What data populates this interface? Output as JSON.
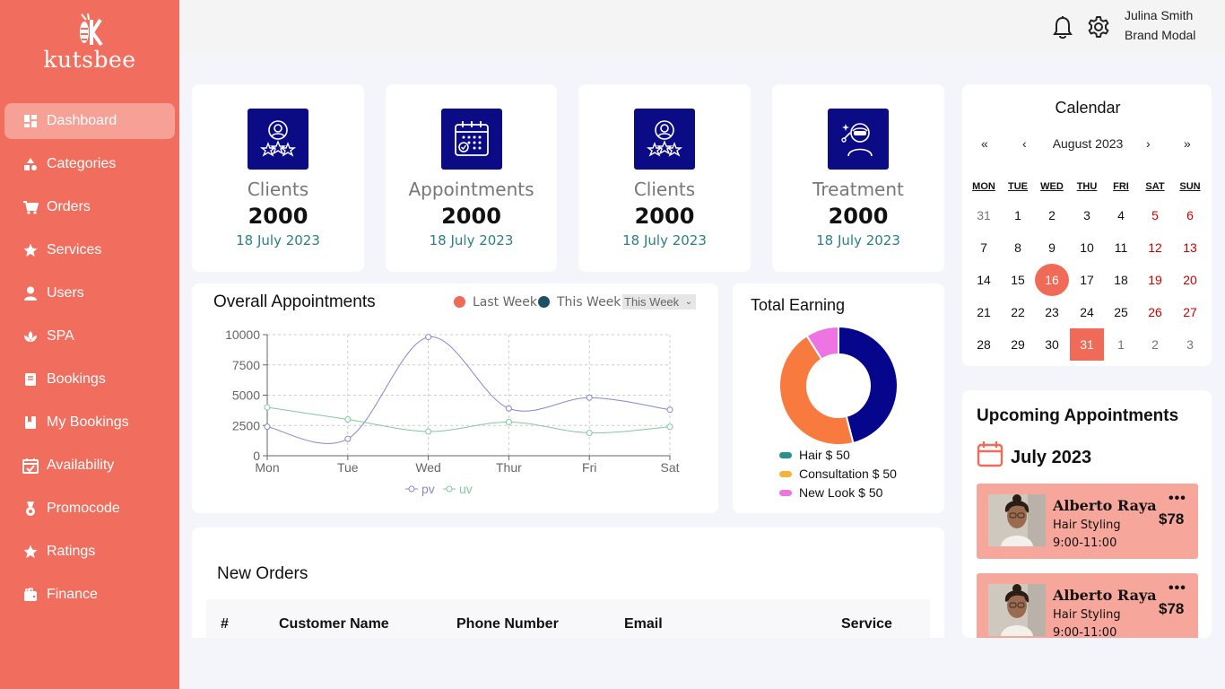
{
  "brand": {
    "name": "kutsbee"
  },
  "sidebar": {
    "items": [
      {
        "label": "Dashboard",
        "icon": "dashboard-icon",
        "active": true
      },
      {
        "label": "Categories",
        "icon": "categories-icon"
      },
      {
        "label": "Orders",
        "icon": "cart-icon"
      },
      {
        "label": "Services",
        "icon": "star-icon"
      },
      {
        "label": "Users",
        "icon": "user-icon"
      },
      {
        "label": "SPA",
        "icon": "spa-icon"
      },
      {
        "label": "Bookings",
        "icon": "book-icon"
      },
      {
        "label": "My Bookings",
        "icon": "bookmark-icon"
      },
      {
        "label": "Availability",
        "icon": "calendar-check-icon"
      },
      {
        "label": "Promocode",
        "icon": "badge-icon"
      },
      {
        "label": "Ratings",
        "icon": "star-icon"
      },
      {
        "label": "Finance",
        "icon": "wallet-icon"
      }
    ]
  },
  "header": {
    "user_name": "Julina Smith",
    "user_role": "Brand Modal"
  },
  "stats": [
    {
      "title": "Clients",
      "value": "2000",
      "date": "18 July 2023",
      "icon": "client-star-icon"
    },
    {
      "title": "Appointments",
      "value": "2000",
      "date": "18 July 2023",
      "icon": "appointment-calendar-icon"
    },
    {
      "title": "Clients",
      "value": "2000",
      "date": "18 July 2023",
      "icon": "client-star-icon"
    },
    {
      "title": "Treatment",
      "value": "2000",
      "date": "18 July 2023",
      "icon": "treatment-face-icon"
    }
  ],
  "appointments_chart": {
    "title": "Overall Appointments",
    "legend_last_week": "Last Week",
    "legend_this_week": "This Week",
    "select_value": "This Week",
    "colors": {
      "last_week": "#ef6b58",
      "this_week": "#1b4f63",
      "pv": "#8884d8",
      "uv": "#82ca9d"
    }
  },
  "earning": {
    "title": "Total Earning",
    "legend": [
      "Hair $ 50",
      "Consultation $ 50",
      "New Look $ 50"
    ]
  },
  "calendar": {
    "title": "Calendar",
    "month": "August 2023",
    "nav": {
      "prev_year": "«",
      "prev": "‹",
      "next": "›",
      "next_year": "»"
    },
    "weekdays": [
      "MON",
      "TUE",
      "WED",
      "THU",
      "FRI",
      "SAT",
      "SUN"
    ],
    "weeks": [
      [
        "31",
        "1",
        "2",
        "3",
        "4",
        "5",
        "6"
      ],
      [
        "7",
        "8",
        "9",
        "10",
        "11",
        "12",
        "13"
      ],
      [
        "14",
        "15",
        "16",
        "17",
        "18",
        "19",
        "20"
      ],
      [
        "21",
        "22",
        "23",
        "24",
        "25",
        "26",
        "27"
      ],
      [
        "28",
        "29",
        "30",
        "31",
        "1",
        "2",
        "3"
      ]
    ],
    "today": "16",
    "selected": "31"
  },
  "upcoming": {
    "title": "Upcoming Appointments",
    "month": "July 2023",
    "items": [
      {
        "name": "Alberto Raya",
        "service": "Hair Styling",
        "time": "9:00-11:00",
        "price": "$78",
        "more": "•••"
      },
      {
        "name": "Alberto Raya",
        "service": "Hair Styling",
        "time": "9:00-11:00",
        "price": "$78",
        "more": "•••"
      }
    ]
  },
  "orders": {
    "title": "New Orders",
    "columns": [
      "#",
      "Customer Name",
      "Phone Number",
      "Email",
      "Service"
    ]
  },
  "chart_data": [
    {
      "type": "line",
      "categories": [
        "Mon",
        "Tue",
        "Wed",
        "Thur",
        "Fri",
        "Sat"
      ],
      "series": [
        {
          "name": "pv",
          "values": [
            2400,
            1398,
            9800,
            3908,
            4800,
            3800
          ]
        },
        {
          "name": "uv",
          "values": [
            4000,
            3000,
            2000,
            2780,
            1890,
            2390
          ]
        }
      ],
      "ylim": [
        0,
        10000
      ],
      "yticks": [
        "0",
        "2500",
        "5000",
        "7500",
        "10000"
      ],
      "grid": true,
      "legend": "bottom"
    },
    {
      "type": "pie",
      "categories": [
        "Hair",
        "Consultation",
        "New Look"
      ],
      "values": [
        46,
        45,
        9
      ],
      "colors": [
        "#06068c",
        "#f97a3e",
        "#ee74e4"
      ],
      "legend_colors": [
        "#2a8f8f",
        "#f7b23b",
        "#ee74e4"
      ]
    }
  ]
}
